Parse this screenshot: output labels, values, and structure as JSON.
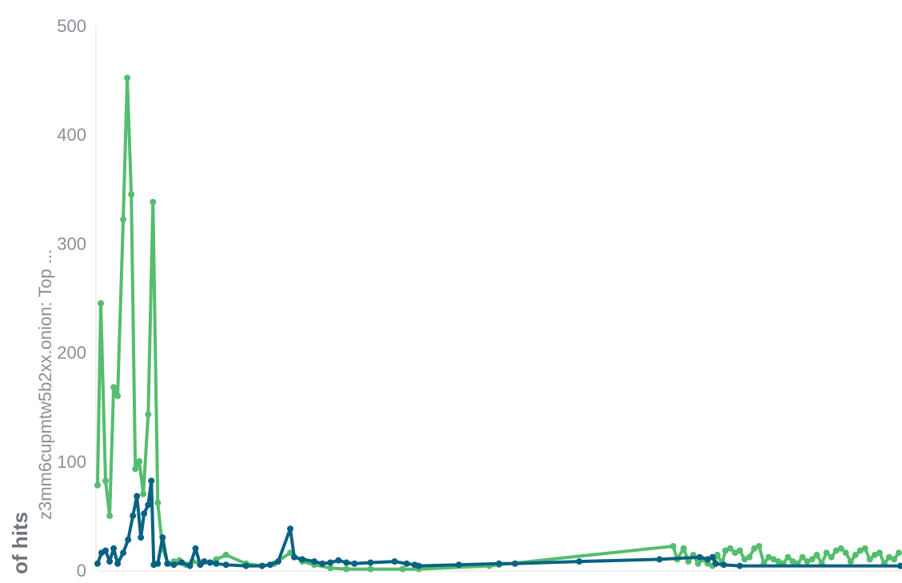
{
  "chart_data": {
    "type": "line",
    "ylabel_main": "of hits",
    "ylabel_sub": "z3mm6cupmtw5b2xx.onion: Top ...",
    "ylim": [
      0,
      500
    ],
    "yticks": [
      0,
      100,
      200,
      300,
      400,
      500
    ],
    "xlim": [
      0,
      1000
    ],
    "grid": false,
    "colors": {
      "green": "#54bd6e",
      "blue": "#0a6282"
    },
    "series": [
      {
        "color": "green",
        "points": [
          [
            0,
            78
          ],
          [
            4,
            245
          ],
          [
            10,
            82
          ],
          [
            15,
            50
          ],
          [
            20,
            168
          ],
          [
            25,
            160
          ],
          [
            32,
            322
          ],
          [
            37,
            452
          ],
          [
            42,
            345
          ],
          [
            47,
            93
          ],
          [
            52,
            100
          ],
          [
            57,
            70
          ],
          [
            63,
            143
          ],
          [
            69,
            338
          ],
          [
            75,
            62
          ],
          [
            81,
            20
          ],
          [
            88,
            6
          ],
          [
            95,
            8
          ],
          [
            102,
            9
          ],
          [
            110,
            5
          ],
          [
            118,
            8
          ],
          [
            126,
            7
          ],
          [
            133,
            8
          ],
          [
            140,
            7
          ],
          [
            148,
            10
          ],
          [
            160,
            14
          ],
          [
            185,
            6
          ],
          [
            205,
            4
          ],
          [
            220,
            6
          ],
          [
            240,
            16
          ],
          [
            255,
            8
          ],
          [
            270,
            5
          ],
          [
            290,
            2
          ],
          [
            310,
            1
          ],
          [
            340,
            1
          ],
          [
            380,
            1
          ],
          [
            400,
            1
          ],
          [
            488,
            4
          ],
          [
            500,
            5
          ],
          [
            717,
            22
          ],
          [
            722,
            10
          ],
          [
            730,
            20
          ],
          [
            736,
            8
          ],
          [
            742,
            14
          ],
          [
            748,
            6
          ],
          [
            754,
            10
          ],
          [
            760,
            6
          ],
          [
            766,
            4
          ],
          [
            772,
            14
          ],
          [
            778,
            6
          ],
          [
            782,
            18
          ],
          [
            788,
            20
          ],
          [
            794,
            16
          ],
          [
            800,
            18
          ],
          [
            806,
            10
          ],
          [
            812,
            12
          ],
          [
            818,
            20
          ],
          [
            824,
            22
          ],
          [
            830,
            6
          ],
          [
            836,
            12
          ],
          [
            842,
            10
          ],
          [
            848,
            8
          ],
          [
            854,
            6
          ],
          [
            860,
            12
          ],
          [
            866,
            8
          ],
          [
            872,
            6
          ],
          [
            878,
            12
          ],
          [
            884,
            8
          ],
          [
            890,
            10
          ],
          [
            896,
            14
          ],
          [
            902,
            6
          ],
          [
            908,
            16
          ],
          [
            914,
            12
          ],
          [
            920,
            18
          ],
          [
            926,
            20
          ],
          [
            932,
            16
          ],
          [
            938,
            8
          ],
          [
            944,
            14
          ],
          [
            950,
            18
          ],
          [
            956,
            20
          ],
          [
            962,
            10
          ],
          [
            968,
            14
          ],
          [
            974,
            16
          ],
          [
            980,
            6
          ],
          [
            986,
            12
          ],
          [
            992,
            10
          ],
          [
            998,
            16
          ]
        ]
      },
      {
        "color": "blue",
        "points": [
          [
            0,
            6
          ],
          [
            5,
            16
          ],
          [
            10,
            18
          ],
          [
            15,
            8
          ],
          [
            20,
            20
          ],
          [
            25,
            6
          ],
          [
            32,
            16
          ],
          [
            38,
            28
          ],
          [
            44,
            50
          ],
          [
            49,
            68
          ],
          [
            54,
            30
          ],
          [
            58,
            52
          ],
          [
            63,
            60
          ],
          [
            67,
            82
          ],
          [
            70,
            5
          ],
          [
            75,
            6
          ],
          [
            81,
            30
          ],
          [
            87,
            6
          ],
          [
            95,
            5
          ],
          [
            105,
            7
          ],
          [
            115,
            4
          ],
          [
            122,
            20
          ],
          [
            128,
            5
          ],
          [
            133,
            8
          ],
          [
            140,
            7
          ],
          [
            148,
            6
          ],
          [
            160,
            5
          ],
          [
            185,
            4
          ],
          [
            205,
            4
          ],
          [
            215,
            5
          ],
          [
            225,
            8
          ],
          [
            240,
            38
          ],
          [
            245,
            12
          ],
          [
            255,
            10
          ],
          [
            270,
            8
          ],
          [
            280,
            6
          ],
          [
            290,
            7
          ],
          [
            300,
            9
          ],
          [
            310,
            7
          ],
          [
            320,
            6
          ],
          [
            340,
            7
          ],
          [
            370,
            8
          ],
          [
            385,
            6
          ],
          [
            395,
            5
          ],
          [
            400,
            4
          ],
          [
            450,
            5
          ],
          [
            500,
            6
          ],
          [
            520,
            6
          ],
          [
            600,
            8
          ],
          [
            700,
            10
          ],
          [
            750,
            12
          ],
          [
            760,
            10
          ],
          [
            766,
            12
          ],
          [
            770,
            6
          ],
          [
            780,
            5
          ],
          [
            800,
            4
          ],
          [
            1000,
            4
          ]
        ]
      }
    ]
  }
}
